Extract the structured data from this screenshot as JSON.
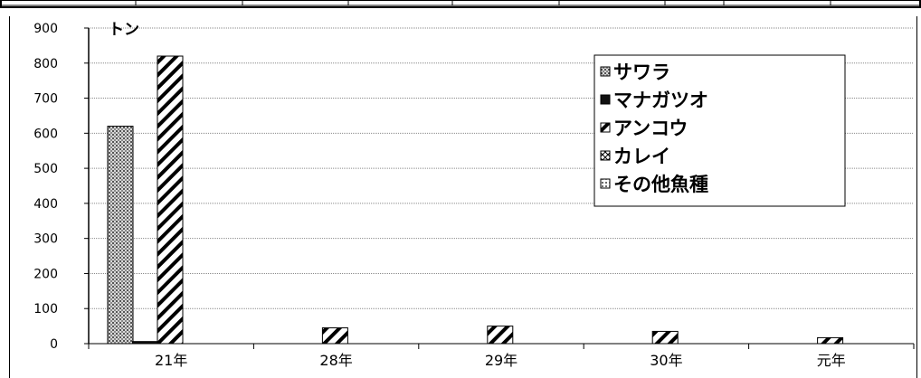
{
  "chart_data": {
    "type": "bar",
    "unit_label": "トン",
    "categories": [
      "21年",
      "28年",
      "29年",
      "30年",
      "元年"
    ],
    "series": [
      {
        "name": "サワラ",
        "values": [
          620,
          0,
          0,
          0,
          0
        ]
      },
      {
        "name": "マナガツオ",
        "values": [
          6,
          0,
          0,
          0,
          0
        ]
      },
      {
        "name": "アンコウ",
        "values": [
          820,
          45,
          50,
          35,
          17
        ]
      },
      {
        "name": "カレイ",
        "values": [
          0,
          0,
          0,
          0,
          0
        ]
      },
      {
        "name": "その他魚種",
        "values": [
          0,
          0,
          0,
          0,
          0
        ]
      }
    ],
    "ylim": [
      0,
      900
    ],
    "yticks": [
      0,
      100,
      200,
      300,
      400,
      500,
      600,
      700,
      800,
      900
    ],
    "ytick_labels": [
      "0",
      "100",
      "200",
      "300",
      "400",
      "500",
      "600",
      "700",
      "800",
      "900"
    ],
    "grid": true,
    "legend_position": "top-right"
  }
}
